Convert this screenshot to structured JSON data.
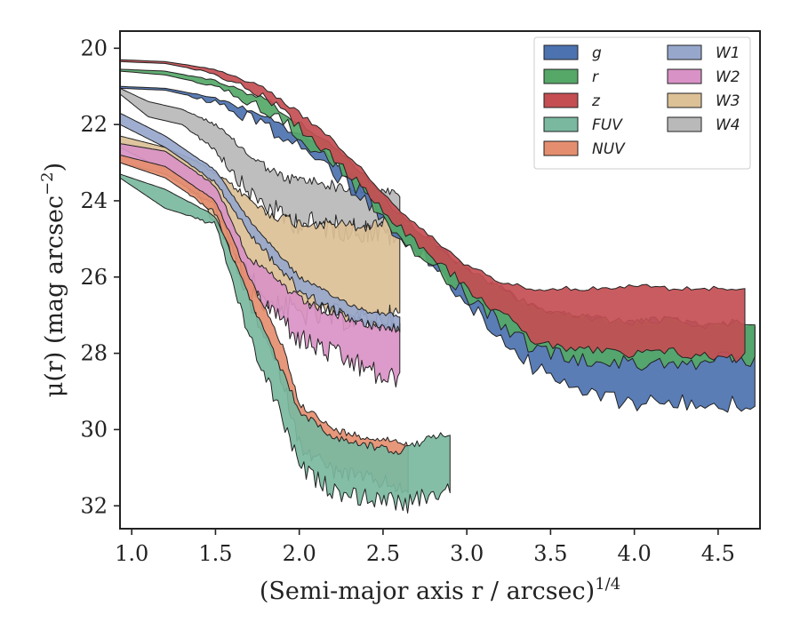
{
  "chart_data": {
    "type": "area",
    "title": "",
    "xlabel": "(Semi-major axis r / arcsec)",
    "xlabel_exponent": "1/4",
    "ylabel": "μ(r) (mag arcsec",
    "ylabel_exponent": "−2",
    "ylabel_close": ")",
    "xlim": [
      0.93,
      4.75
    ],
    "ylim": [
      32.6,
      19.55
    ],
    "y_inverted": true,
    "xticks": [
      1.0,
      1.5,
      2.0,
      2.5,
      3.0,
      3.5,
      4.0,
      4.5
    ],
    "xtick_labels": [
      "1.0",
      "1.5",
      "2.0",
      "2.5",
      "3.0",
      "3.5",
      "4.0",
      "4.5"
    ],
    "yticks": [
      20,
      22,
      24,
      26,
      28,
      30,
      32
    ],
    "ytick_labels": [
      "20",
      "22",
      "24",
      "26",
      "28",
      "30",
      "32"
    ],
    "grid": false,
    "legend_position": "top-right",
    "legend_columns": 2,
    "series": [
      {
        "name": "g",
        "color": "#4c72b0",
        "noise": 0.35,
        "x": [
          0.93,
          1.2,
          1.5,
          1.8,
          2.0,
          2.2,
          2.4,
          2.6,
          2.8,
          3.0,
          3.2,
          3.4,
          3.6,
          3.8,
          4.0,
          4.2,
          4.4,
          4.6,
          4.72
        ],
        "y_upper": [
          21.0,
          21.05,
          21.3,
          21.8,
          22.3,
          22.9,
          23.6,
          24.5,
          25.1,
          25.8,
          26.3,
          26.8,
          27.0,
          27.1,
          27.2,
          27.1,
          27.3,
          27.2,
          27.3
        ],
        "y_lower": [
          21.05,
          21.1,
          21.4,
          21.95,
          22.5,
          23.1,
          23.9,
          24.8,
          25.6,
          26.6,
          27.4,
          28.3,
          28.8,
          29.0,
          29.2,
          29.1,
          29.3,
          29.2,
          29.3
        ]
      },
      {
        "name": "r",
        "color": "#55a868",
        "noise": 0.3,
        "x": [
          0.93,
          1.2,
          1.5,
          1.8,
          2.0,
          2.2,
          2.4,
          2.6,
          2.8,
          3.0,
          3.2,
          3.4,
          3.6,
          3.8,
          4.0,
          4.2,
          4.4,
          4.6,
          4.72
        ],
        "y_upper": [
          20.55,
          20.6,
          20.85,
          21.35,
          21.95,
          22.6,
          23.4,
          24.4,
          25.1,
          25.8,
          26.3,
          26.8,
          27.0,
          27.1,
          27.2,
          27.1,
          27.3,
          27.2,
          27.2
        ],
        "y_lower": [
          20.6,
          20.7,
          21.0,
          21.55,
          22.2,
          22.9,
          23.8,
          24.8,
          25.6,
          26.4,
          27.1,
          27.8,
          28.0,
          28.1,
          28.2,
          28.1,
          28.2,
          28.0,
          28.2
        ]
      },
      {
        "name": "z",
        "color": "#c44e52",
        "noise": 0.2,
        "x": [
          0.93,
          1.2,
          1.5,
          1.8,
          2.0,
          2.2,
          2.4,
          2.6,
          2.8,
          3.0,
          3.2,
          3.4,
          3.6,
          3.8,
          4.0,
          4.2,
          4.4,
          4.6,
          4.66
        ],
        "y_upper": [
          20.3,
          20.35,
          20.55,
          21.05,
          21.7,
          22.4,
          23.3,
          24.3,
          25.0,
          25.7,
          26.1,
          26.3,
          26.3,
          26.3,
          26.2,
          26.3,
          26.3,
          26.3,
          26.3
        ],
        "y_lower": [
          20.35,
          20.4,
          20.65,
          21.25,
          22.0,
          22.8,
          23.7,
          24.6,
          25.4,
          26.2,
          26.9,
          27.6,
          27.8,
          27.9,
          28.0,
          27.9,
          28.0,
          28.1,
          28.0
        ]
      },
      {
        "name": "FUV",
        "color": "#7ab8a0",
        "noise": 0.35,
        "x": [
          0.93,
          1.2,
          1.5,
          1.7,
          1.9,
          2.0,
          2.2,
          2.4,
          2.6,
          2.63,
          2.9
        ],
        "y_upper": [
          23.3,
          23.7,
          24.4,
          26.5,
          28.5,
          29.5,
          30.2,
          30.4,
          30.6,
          30.5,
          30.05
        ],
        "y_lower": [
          23.4,
          24.2,
          24.6,
          27.5,
          29.6,
          30.9,
          31.5,
          31.7,
          31.8,
          31.9,
          31.4
        ]
      },
      {
        "name": "NUV",
        "color": "#e58e6f",
        "noise": 0.3,
        "x": [
          0.93,
          1.2,
          1.5,
          1.7,
          1.9,
          2.0,
          2.2,
          2.4,
          2.6,
          2.65
        ],
        "y_upper": [
          22.8,
          23.1,
          24.0,
          26.0,
          27.8,
          29.3,
          30.0,
          30.2,
          30.3,
          30.4
        ],
        "y_lower": [
          23.0,
          23.4,
          24.3,
          26.6,
          28.6,
          30.3,
          31.0,
          31.2,
          31.4,
          31.7
        ]
      },
      {
        "name": "W1",
        "color": "#97a7cc",
        "noise": 0.2,
        "x": [
          0.93,
          1.2,
          1.5,
          1.7,
          1.9,
          2.0,
          2.2,
          2.4,
          2.6
        ],
        "y_upper": [
          21.7,
          22.3,
          23.2,
          24.5,
          25.5,
          26.0,
          26.5,
          26.9,
          27.0
        ],
        "y_lower": [
          22.0,
          22.6,
          23.5,
          24.8,
          25.8,
          26.3,
          26.8,
          27.2,
          27.3
        ]
      },
      {
        "name": "W2",
        "color": "#d992c6",
        "noise": 0.45,
        "x": [
          0.93,
          1.2,
          1.5,
          1.7,
          1.9,
          2.0,
          2.2,
          2.4,
          2.5,
          2.6
        ],
        "y_upper": [
          22.5,
          22.7,
          23.6,
          25.5,
          26.2,
          26.6,
          27.0,
          27.2,
          27.3,
          27.3
        ],
        "y_lower": [
          23.0,
          23.3,
          24.1,
          26.3,
          27.0,
          27.5,
          27.9,
          28.3,
          28.5,
          28.6
        ]
      },
      {
        "name": "W3",
        "color": "#dcc096",
        "noise": 0.5,
        "x": [
          0.93,
          1.2,
          1.4,
          1.6,
          1.8,
          2.0,
          2.2,
          2.4,
          2.6
        ],
        "y_upper": [
          22.3,
          22.6,
          23.0,
          23.6,
          24.3,
          24.6,
          24.6,
          24.7,
          24.4
        ],
        "y_lower": [
          22.6,
          23.2,
          23.9,
          25.2,
          26.5,
          26.8,
          26.9,
          27.0,
          26.9
        ]
      },
      {
        "name": "W4",
        "color": "#b9b9b9",
        "noise": 0.5,
        "x": [
          0.93,
          1.1,
          1.3,
          1.5,
          1.7,
          1.9,
          2.1,
          2.3,
          2.5,
          2.6
        ],
        "y_upper": [
          21.05,
          21.4,
          21.6,
          22.0,
          22.8,
          23.4,
          23.5,
          23.7,
          23.8,
          23.8
        ],
        "y_lower": [
          21.2,
          21.8,
          22.0,
          22.6,
          23.7,
          24.3,
          24.5,
          24.6,
          24.7,
          24.8
        ]
      }
    ],
    "draw_order": [
      "W4",
      "W3",
      "W2",
      "W1",
      "NUV",
      "FUV",
      "g",
      "r",
      "z"
    ]
  }
}
